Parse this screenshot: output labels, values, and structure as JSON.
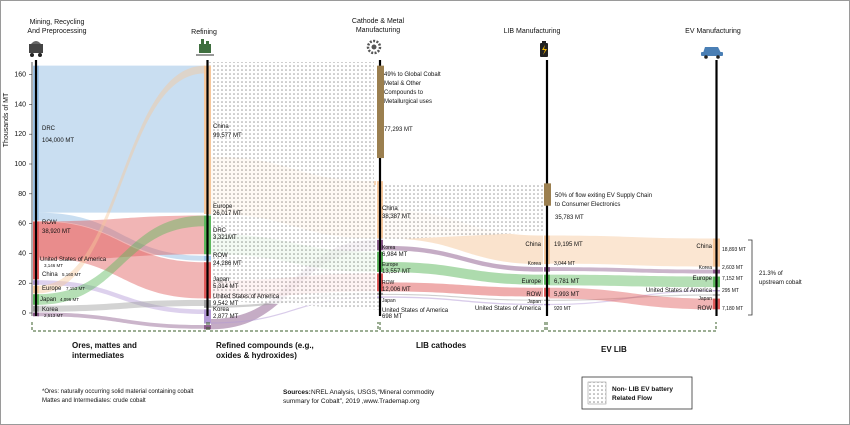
{
  "stages": [
    {
      "title_l1": "Mining, Recycling",
      "title_l2": "And Preprocessing",
      "title_l3": "",
      "icon": "mine-cart-icon"
    },
    {
      "title_l1": "Refining",
      "title_l2": "",
      "title_l3": "",
      "icon": "refinery-icon"
    },
    {
      "title_l1": "Cathode & Metal",
      "title_l2": "Manufacturing",
      "title_l3": "",
      "icon": "gear-icon"
    },
    {
      "title_l1": "LIB Manufacturing",
      "title_l2": "",
      "title_l3": "",
      "icon": "battery-icon"
    },
    {
      "title_l1": "EV Manufacturing",
      "title_l2": "",
      "title_l3": "",
      "icon": "car-icon"
    }
  ],
  "axis": {
    "label": "Thousands of MT",
    "ticks": [
      "0",
      "20",
      "40",
      "60",
      "80",
      "100",
      "120",
      "140",
      "160"
    ]
  },
  "chart_data": {
    "type": "sankey",
    "unit": "Thousands of MT",
    "ylim": [
      0,
      170
    ],
    "mining": [
      {
        "label": "DRC",
        "value": "104,000 MT",
        "kt": 104.0
      },
      {
        "label": "ROW",
        "value": "38,920 MT",
        "kt": 38.92
      },
      {
        "label": "United States of America",
        "value": "3,146 MT",
        "kt": 3.146
      },
      {
        "label": "China",
        "value": "5,160 MT",
        "kt": 5.16
      },
      {
        "label": "Europe",
        "value": "7,153 MT",
        "kt": 7.153
      },
      {
        "label": "Japan",
        "value": "4,096 MT",
        "kt": 4.096
      },
      {
        "label": "Korea",
        "value": "2,513 MT",
        "kt": 2.513
      }
    ],
    "refining": [
      {
        "label": "China",
        "value": "99,577 MT",
        "kt": 99.577
      },
      {
        "label": "Europe",
        "value": "26,017 MT",
        "kt": 26.017
      },
      {
        "label": "DRC",
        "value": "3,321MT",
        "kt": 3.321
      },
      {
        "label": "ROW",
        "value": "24,286 MT",
        "kt": 24.286
      },
      {
        "label": "Japan",
        "value": "5,314 MT",
        "kt": 5.314
      },
      {
        "label": "United States of America",
        "value": "9,542 MT",
        "kt": 9.542
      },
      {
        "label": "Korea",
        "value": "2,877 MT",
        "kt": 2.877
      }
    ],
    "cathode": [
      {
        "label": "China",
        "value": "38,387 MT",
        "kt": 38.387
      },
      {
        "label": "Korea",
        "value": "6,984 MT",
        "kt": 6.984
      },
      {
        "label": "Europe",
        "value": "13,557 MT",
        "kt": 13.557
      },
      {
        "label": "ROW",
        "value": "12,006 MT",
        "kt": 12.006
      },
      {
        "label": "Japan",
        "value": "",
        "kt": 1.5
      },
      {
        "label": "United States of America",
        "value": "698 MT",
        "kt": 0.698
      }
    ],
    "lib": [
      {
        "label": "China",
        "value": "19,195 MT",
        "kt": 19.195
      },
      {
        "label": "Korea",
        "value": "3,044 MT",
        "kt": 3.044
      },
      {
        "label": "Europe",
        "value": "6,781 MT",
        "kt": 6.781
      },
      {
        "label": "ROW",
        "value": "5,993 MT",
        "kt": 5.993
      },
      {
        "label": "Japan",
        "value": "",
        "kt": 0.8
      },
      {
        "label": "United States of America",
        "value": "920 MT",
        "kt": 0.92
      }
    ],
    "ev": [
      {
        "label": "China",
        "value": "18,893 MT",
        "kt": 18.893
      },
      {
        "label": "Korea",
        "value": "2,603 MT",
        "kt": 2.603
      },
      {
        "label": "Europe",
        "value": "7,152 MT",
        "kt": 7.152
      },
      {
        "label": "United States of America",
        "value": "295 MT",
        "kt": 0.295
      },
      {
        "label": "Japan",
        "value": "",
        "kt": 0.5
      },
      {
        "label": "ROW",
        "value": "7,180 MT",
        "kt": 7.18
      }
    ],
    "non_lib_flows": [
      {
        "l1": "49%  to Global Cobalt",
        "l2": "Metal & Other",
        "l3": "Compounds to",
        "l4": "Metallurgical uses",
        "value": "77,293 MT",
        "kt": 77.293
      },
      {
        "l1": "50% of flow exiting EV Supply Chain",
        "l2": "to Consumer Electronics",
        "l3": "",
        "l4": "",
        "value": "35,783 MT",
        "kt": 35.783
      }
    ],
    "upstream_share_l1": "21.3% of",
    "upstream_share_l2": "upstream cobalt"
  },
  "categories": [
    {
      "l1": "Ores, mattes and",
      "l2": "intermediates"
    },
    {
      "l1": "Refined compounds (e.g.,",
      "l2": "oxides & hydroxides)"
    },
    {
      "l1": "LIB cathodes",
      "l2": ""
    },
    {
      "l1": "EV LIB",
      "l2": ""
    }
  ],
  "footnote_l1": "*Ores: naturally occurring solid material containing cobalt",
  "footnote_l2": "Mattes and Intermediates: crude cobalt",
  "sources_label": "Sources:",
  "sources_l1": "NREL Analysis, USGS,“Mineral commodity",
  "sources_l2": "summary for Cobalt”, 2019 ,www.Trademap.org",
  "legend_l1": "Non- LIB EV battery",
  "legend_l2": "Related Flow",
  "colors": {
    "china": "#f6c79b",
    "drc": "#9dc3e6",
    "row": "#e05a5a",
    "usa": "#b49ad6",
    "europe": "#5cb85c",
    "japan": "#9e9e9e",
    "korea": "#8c5a8c",
    "other": "#9b7f4f"
  }
}
